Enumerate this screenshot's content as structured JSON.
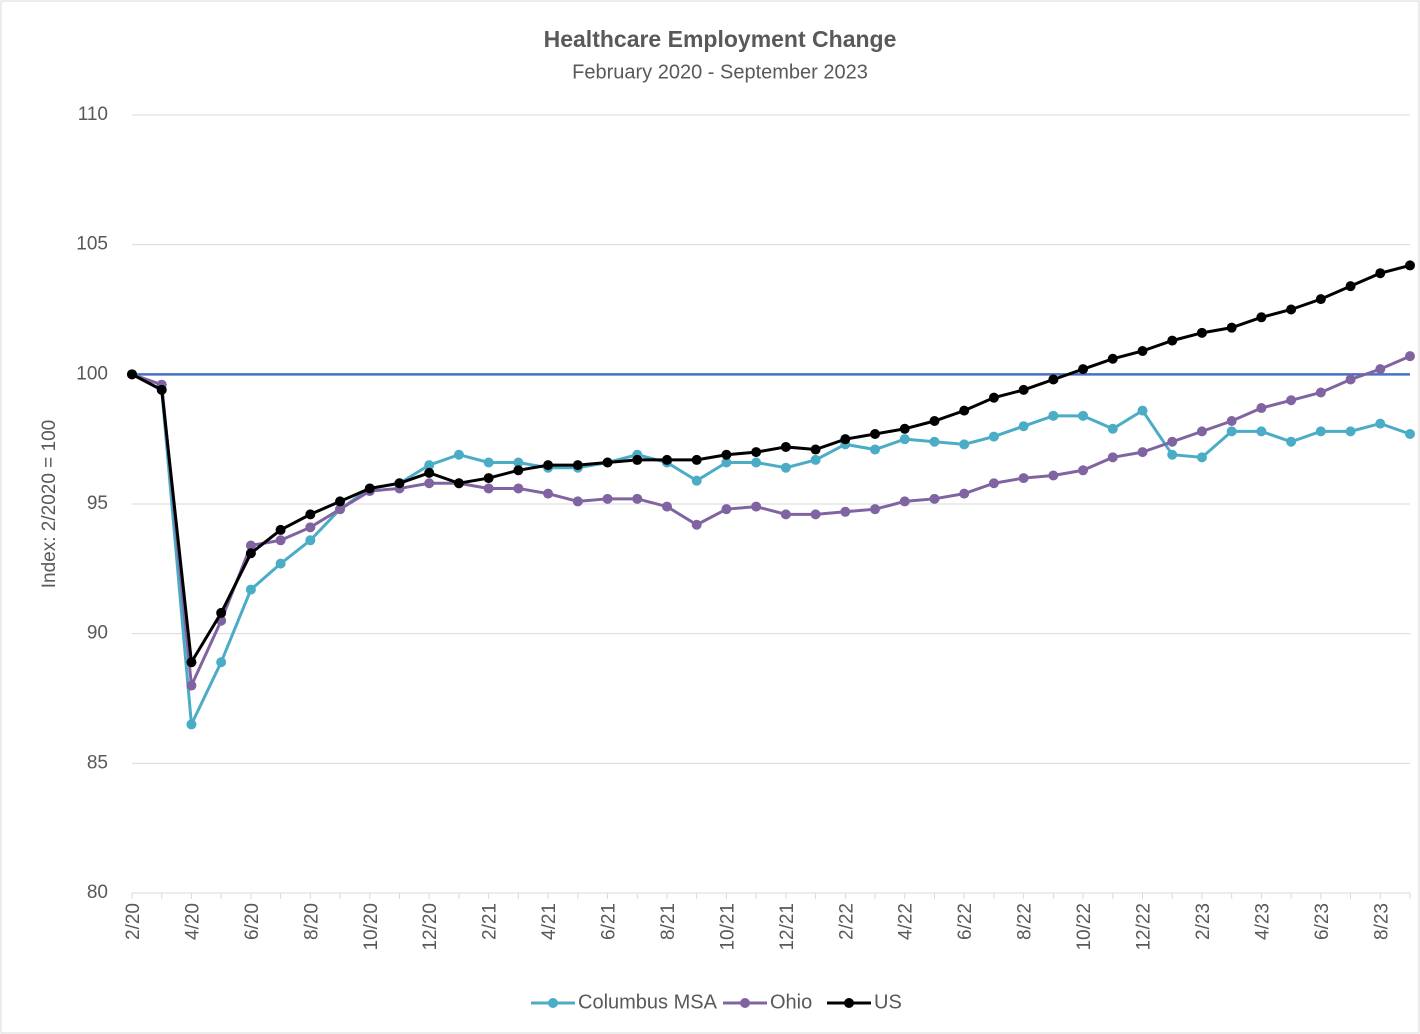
{
  "chart_data": {
    "type": "line",
    "title": "Healthcare Employment Change",
    "subtitle": "February 2020 - September 2023",
    "y_label": "Index: 2/2020 = 100",
    "categories": [
      "2/20",
      null,
      "4/20",
      null,
      "6/20",
      null,
      "8/20",
      null,
      "10/20",
      null,
      "12/20",
      null,
      "2/21",
      null,
      "4/21",
      null,
      "6/21",
      null,
      "8/21",
      null,
      "10/21",
      null,
      "12/21",
      null,
      "2/22",
      null,
      "4/22",
      null,
      "6/22",
      null,
      "8/22",
      null,
      "10/22",
      null,
      "12/22",
      null,
      "2/23",
      null,
      "4/23",
      null,
      "6/23",
      null,
      "8/23",
      null
    ],
    "series": [
      {
        "name": "Columbus MSA",
        "color": "#4bacc6",
        "values": [
          100,
          99.4,
          86.5,
          88.9,
          91.7,
          92.7,
          93.6,
          94.8,
          95.6,
          95.8,
          96.5,
          96.9,
          96.6,
          96.6,
          96.4,
          96.4,
          96.6,
          96.9,
          96.6,
          95.9,
          96.6,
          96.6,
          96.4,
          96.7,
          97.3,
          97.1,
          97.5,
          97.4,
          97.3,
          97.6,
          98.0,
          98.4,
          98.4,
          97.9,
          98.6,
          96.9,
          96.8,
          97.8,
          97.8,
          97.4,
          97.8,
          97.8,
          98.1,
          97.7
        ]
      },
      {
        "name": "Ohio",
        "color": "#8064a2",
        "values": [
          100,
          99.6,
          88.0,
          90.5,
          93.4,
          93.6,
          94.1,
          94.8,
          95.5,
          95.6,
          95.8,
          95.8,
          95.6,
          95.6,
          95.4,
          95.1,
          95.2,
          95.2,
          94.9,
          94.2,
          94.8,
          94.9,
          94.6,
          94.6,
          94.7,
          94.8,
          95.1,
          95.2,
          95.4,
          95.8,
          96.0,
          96.1,
          96.3,
          96.8,
          97.0,
          97.4,
          97.8,
          98.2,
          98.7,
          99.0,
          99.3,
          99.8,
          100.2,
          100.7
        ]
      },
      {
        "name": "US",
        "color": "#000000",
        "values": [
          100,
          99.4,
          88.9,
          90.8,
          93.1,
          94.0,
          94.6,
          95.1,
          95.6,
          95.8,
          96.2,
          95.8,
          96.0,
          96.3,
          96.5,
          96.5,
          96.6,
          96.7,
          96.7,
          96.7,
          96.9,
          97.0,
          97.2,
          97.1,
          97.5,
          97.7,
          97.9,
          98.2,
          98.6,
          99.1,
          99.4,
          99.8,
          100.2,
          100.6,
          100.9,
          101.3,
          101.6,
          101.8,
          102.2,
          102.5,
          102.9,
          103.4,
          103.9,
          104.2
        ]
      }
    ],
    "reference_line": {
      "value": 100,
      "color": "#4472c4"
    },
    "ylim": [
      80,
      110
    ],
    "yticks": [
      80,
      85,
      90,
      95,
      100,
      105,
      110
    ],
    "grid": true,
    "legend": "bottom"
  }
}
